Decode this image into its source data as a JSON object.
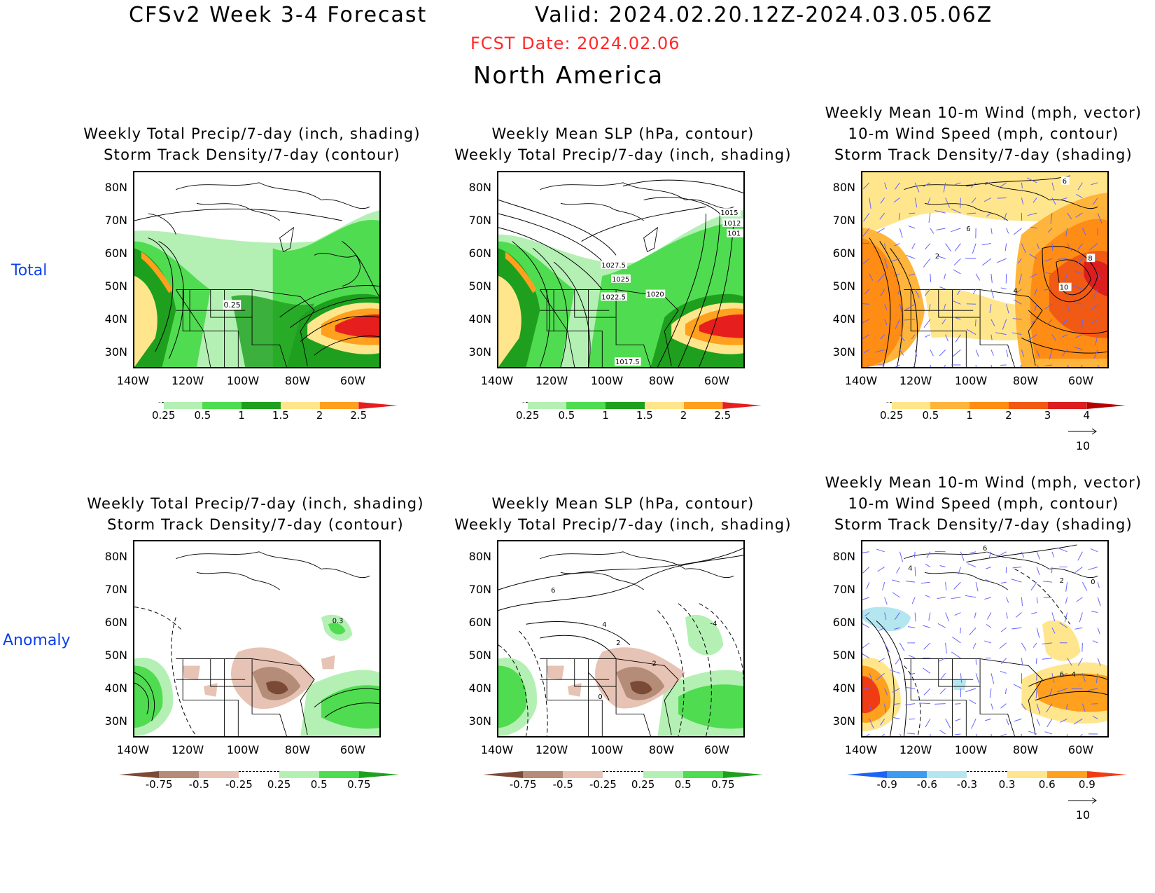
{
  "header": {
    "title_left": "CFSv2 Week 3-4 Forecast",
    "title_right": "Valid: 2024.02.20.12Z-2024.03.05.06Z",
    "fcst_date": "FCST Date: 2024.02.06",
    "region": "North America"
  },
  "rows": [
    {
      "label": "Total"
    },
    {
      "label": "Anomaly"
    }
  ],
  "panels": {
    "precip_track": {
      "lines": [
        "Weekly Total Precip/7-day (inch, shading)",
        "Storm Track Density/7-day (contour)"
      ]
    },
    "slp_precip": {
      "lines": [
        "Weekly Mean SLP (hPa, contour)",
        "Weekly Total Precip/7-day (inch, shading)"
      ]
    },
    "wind_track": {
      "lines": [
        "Weekly Mean 10-m Wind (mph, vector)",
        "10-m Wind Speed (mph, contour)",
        "Storm Track Density/7-day (shading)"
      ]
    }
  },
  "axes": {
    "lat_ticks": [
      "80N",
      "70N",
      "60N",
      "50N",
      "40N",
      "30N"
    ],
    "lon_ticks": [
      "140W",
      "120W",
      "100W",
      "80W",
      "60W"
    ]
  },
  "contour_labels": {
    "total_precip": [
      "0.25"
    ],
    "total_slp": [
      "1027.5",
      "1025",
      "1022.5",
      "1020",
      "1017.5",
      "1015",
      "1012",
      "101"
    ],
    "total_wind": [
      "6",
      "2",
      "4",
      "8",
      "10",
      "6"
    ],
    "anom_precip": [
      "0.3"
    ],
    "anom_slp": [
      "6",
      "4",
      "2",
      "2",
      "0",
      "-4"
    ],
    "anom_wind": [
      "6",
      "4",
      "2",
      "0",
      "6",
      "4"
    ]
  },
  "colorbars": {
    "precip_total": {
      "labels": [
        "0.25",
        "0.5",
        "1",
        "1.5",
        "2",
        "2.5"
      ],
      "colors": [
        "#ffffff",
        "#b4f0b4",
        "#50dc50",
        "#1ea01e",
        "#ffe68c",
        "#ffa01e",
        "#e61e1e"
      ]
    },
    "track_total": {
      "labels": [
        "0.25",
        "0.5",
        "1",
        "2",
        "3",
        "4"
      ],
      "colors": [
        "#ffffff",
        "#ffe68c",
        "#ffb43c",
        "#ff8c14",
        "#f05a14",
        "#dc1e1e",
        "#b40000"
      ]
    },
    "precip_anom": {
      "labels": [
        "-0.75",
        "-0.5",
        "-0.25",
        "0.25",
        "0.5",
        "0.75"
      ],
      "colors": [
        "#7a4a36",
        "#b48c78",
        "#e6c3b4",
        "#ffffff",
        "#b4f0b4",
        "#50dc50",
        "#1ea01e"
      ]
    },
    "track_anom": {
      "labels": [
        "-0.9",
        "-0.6",
        "-0.3",
        "0.3",
        "0.6",
        "0.9"
      ],
      "colors": [
        "#1e64f0",
        "#3c9cf0",
        "#b4e6f0",
        "#ffffff",
        "#ffe68c",
        "#ffa01e",
        "#f03c14"
      ]
    }
  },
  "vector_ref": {
    "label": "10"
  },
  "colors": {
    "fcst_date": "#ff2a2a",
    "row_label": "#0b3ff0",
    "wind_vector": "#6464ff"
  }
}
